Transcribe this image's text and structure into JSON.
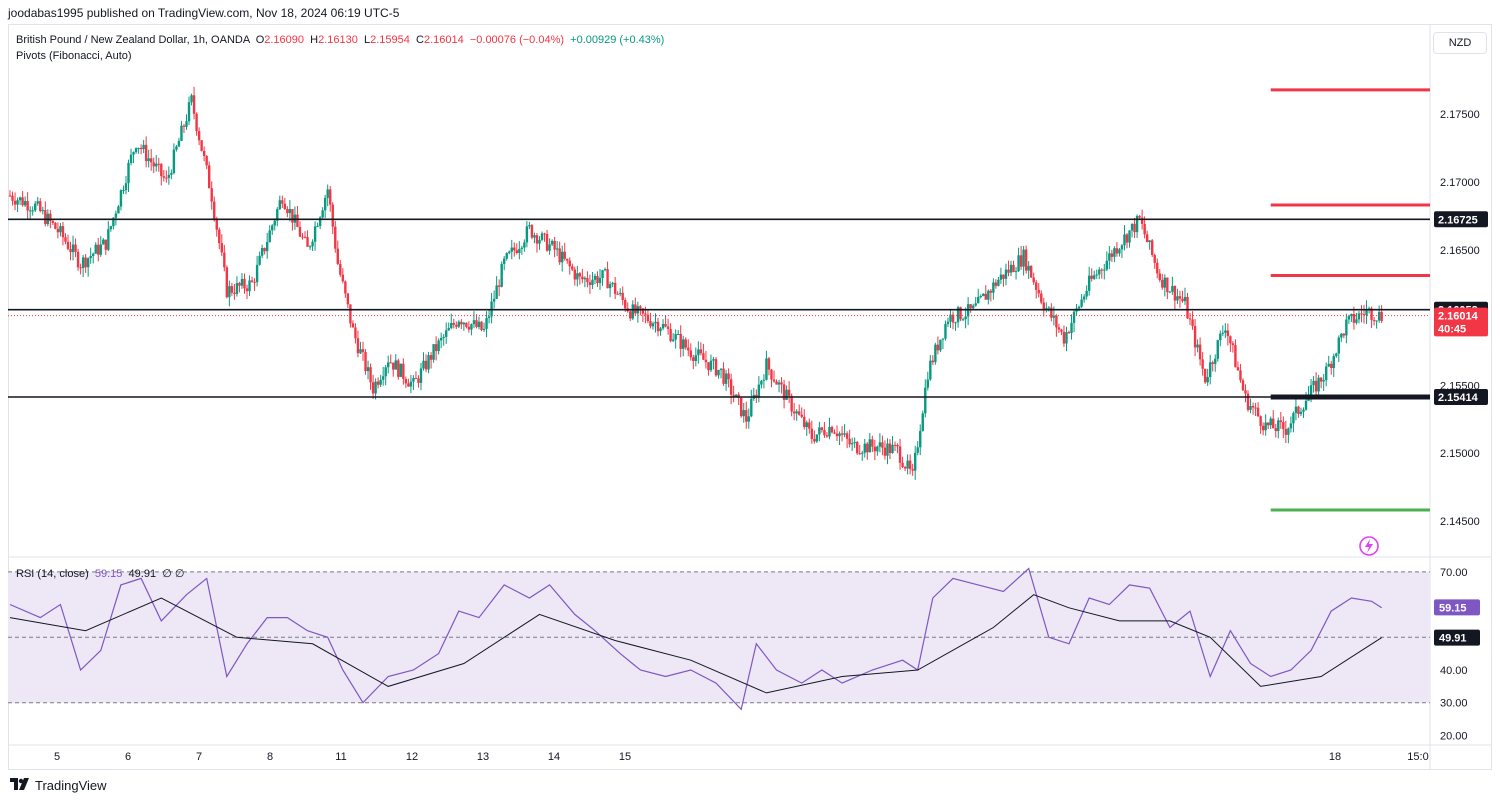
{
  "header": {
    "published_by": "joodabas1995 published on TradingView.com, Nov 18, 2024 06:19 UTC-5"
  },
  "legend": {
    "symbol": "British Pound / New Zealand Dollar, 1h, OANDA",
    "open_label": "O",
    "open": "2.16090",
    "high_label": "H",
    "high": "2.16130",
    "low_label": "L",
    "low": "2.15954",
    "close_label": "C",
    "close": "2.16014",
    "change": "−0.00076 (−0.04%)",
    "change2": "+0.00929 (+0.43%)",
    "indicator": "Pivots (Fibonacci, Auto)"
  },
  "currency_button": "NZD",
  "rsi_legend": {
    "label": "RSI (14, close)",
    "value": "59.15",
    "ma_value": "49.91",
    "extra": "∅ ∅"
  },
  "footer": {
    "brand": "TradingView"
  },
  "colors": {
    "up": "#089981",
    "down": "#f23645",
    "rsi_line": "#7e57c2",
    "rsi_band": "#ede7f6",
    "pivot_red": "#f23645",
    "pivot_green": "#4caf50",
    "pivot_black": "#131722"
  },
  "icons": {
    "alert": "lightning-alert-icon",
    "logo": "tradingview-logo-icon"
  },
  "chart_data": [
    {
      "type": "candlestick",
      "title": "British Pound / New Zealand Dollar, 1h, OANDA",
      "ylim": [
        2.143,
        2.179
      ],
      "y_ticks": [
        "2.17500",
        "2.17000",
        "2.16500",
        "2.15500",
        "2.15000",
        "2.14500"
      ],
      "x_ticks": [
        "5",
        "6",
        "7",
        "8",
        "11",
        "12",
        "13",
        "14",
        "15",
        "18",
        "15:0"
      ],
      "price_labels": [
        {
          "text": "2.16725",
          "value": 2.16725,
          "style": "black"
        },
        {
          "text": "2.16058",
          "value": 2.16058,
          "style": "black"
        },
        {
          "text": "2.16014",
          "value": 2.16014,
          "style": "red"
        },
        {
          "text": "40:45",
          "value": 2.1592,
          "style": "red"
        },
        {
          "text": "2.15414",
          "value": 2.15414,
          "style": "black"
        }
      ],
      "horizontal_lines": [
        {
          "value": 2.16725,
          "color": "black",
          "span": "full"
        },
        {
          "value": 2.16058,
          "color": "black",
          "span": "full"
        },
        {
          "value": 2.15414,
          "color": "black",
          "span": "full"
        },
        {
          "value": 2.16014,
          "color": "red",
          "span": "full",
          "style": "dotted"
        }
      ],
      "pivot_levels": [
        {
          "value": 2.1768,
          "color": "red"
        },
        {
          "value": 2.1683,
          "color": "red"
        },
        {
          "value": 2.1631,
          "color": "red"
        },
        {
          "value": 2.15414,
          "color": "black"
        },
        {
          "value": 2.1458,
          "color": "green"
        }
      ],
      "close_path": [
        [
          0,
          2.169
        ],
        [
          10,
          2.1682
        ],
        [
          20,
          2.1662
        ],
        [
          28,
          2.164
        ],
        [
          38,
          2.1655
        ],
        [
          50,
          2.173
        ],
        [
          62,
          2.17
        ],
        [
          72,
          2.176
        ],
        [
          80,
          2.169
        ],
        [
          86,
          2.162
        ],
        [
          96,
          2.1625
        ],
        [
          108,
          2.169
        ],
        [
          118,
          2.165
        ],
        [
          126,
          2.1695
        ],
        [
          130,
          2.164
        ],
        [
          136,
          2.159
        ],
        [
          144,
          2.1548
        ],
        [
          150,
          2.157
        ],
        [
          160,
          2.155
        ],
        [
          168,
          2.1575
        ],
        [
          178,
          2.16
        ],
        [
          188,
          2.159
        ],
        [
          196,
          2.164
        ],
        [
          206,
          2.1665
        ],
        [
          216,
          2.165
        ],
        [
          226,
          2.1628
        ],
        [
          236,
          2.163
        ],
        [
          246,
          2.1605
        ],
        [
          258,
          2.1595
        ],
        [
          270,
          2.1575
        ],
        [
          282,
          2.156
        ],
        [
          292,
          2.1525
        ],
        [
          300,
          2.1565
        ],
        [
          310,
          2.1535
        ],
        [
          318,
          2.1512
        ],
        [
          326,
          2.152
        ],
        [
          334,
          2.1505
        ],
        [
          344,
          2.1505
        ],
        [
          352,
          2.1502
        ],
        [
          358,
          2.1482
        ],
        [
          364,
          2.156
        ],
        [
          372,
          2.16
        ],
        [
          382,
          2.1605
        ],
        [
          392,
          2.1628
        ],
        [
          402,
          2.1645
        ],
        [
          410,
          2.161
        ],
        [
          418,
          2.1585
        ],
        [
          428,
          2.1625
        ],
        [
          438,
          2.165
        ],
        [
          448,
          2.1672
        ],
        [
          456,
          2.163
        ],
        [
          466,
          2.161
        ],
        [
          474,
          2.1555
        ],
        [
          482,
          2.1595
        ],
        [
          490,
          2.154
        ],
        [
          498,
          2.152
        ],
        [
          506,
          2.1518
        ],
        [
          514,
          2.154
        ],
        [
          522,
          2.156
        ],
        [
          530,
          2.1595
        ],
        [
          538,
          2.1605
        ],
        [
          544,
          2.1601
        ]
      ],
      "total_bars": 560
    },
    {
      "type": "line",
      "title": "RSI (14, close)",
      "ylim": [
        18,
        73
      ],
      "y_ticks": [
        "70.00",
        "40.00",
        "30.00",
        "20.00"
      ],
      "bands": {
        "upper": 70,
        "middle": 50,
        "lower": 30
      },
      "value_labels": [
        {
          "text": "59.15",
          "value": 59.15,
          "style": "purple"
        },
        {
          "text": "49.91",
          "value": 49.91,
          "style": "black"
        }
      ],
      "series": [
        {
          "name": "RSI",
          "values": [
            [
              0,
              60
            ],
            [
              12,
              56
            ],
            [
              20,
              60
            ],
            [
              28,
              40
            ],
            [
              36,
              46
            ],
            [
              44,
              66
            ],
            [
              52,
              68
            ],
            [
              60,
              55
            ],
            [
              70,
              63
            ],
            [
              78,
              68
            ],
            [
              86,
              38
            ],
            [
              94,
              48
            ],
            [
              102,
              56
            ],
            [
              110,
              56
            ],
            [
              118,
              52
            ],
            [
              126,
              50
            ],
            [
              132,
              40
            ],
            [
              140,
              30
            ],
            [
              150,
              38
            ],
            [
              160,
              40
            ],
            [
              170,
              45
            ],
            [
              178,
              58
            ],
            [
              186,
              56
            ],
            [
              196,
              66
            ],
            [
              206,
              62
            ],
            [
              214,
              66
            ],
            [
              224,
              57
            ],
            [
              232,
              52
            ],
            [
              242,
              45
            ],
            [
              250,
              40
            ],
            [
              260,
              38
            ],
            [
              270,
              40
            ],
            [
              280,
              36
            ],
            [
              290,
              28
            ],
            [
              296,
              48
            ],
            [
              304,
              40
            ],
            [
              314,
              36
            ],
            [
              322,
              40
            ],
            [
              330,
              36
            ],
            [
              342,
              40
            ],
            [
              354,
              43
            ],
            [
              360,
              40
            ],
            [
              366,
              62
            ],
            [
              374,
              68
            ],
            [
              384,
              66
            ],
            [
              394,
              64
            ],
            [
              404,
              71
            ],
            [
              412,
              50
            ],
            [
              420,
              48
            ],
            [
              428,
              62
            ],
            [
              436,
              60
            ],
            [
              444,
              66
            ],
            [
              452,
              65
            ],
            [
              460,
              53
            ],
            [
              468,
              58
            ],
            [
              476,
              38
            ],
            [
              484,
              52
            ],
            [
              492,
              42
            ],
            [
              500,
              38
            ],
            [
              508,
              40
            ],
            [
              516,
              46
            ],
            [
              524,
              58
            ],
            [
              532,
              62
            ],
            [
              540,
              61
            ],
            [
              544,
              59
            ]
          ]
        },
        {
          "name": "RSI-based MA",
          "values": [
            [
              0,
              56
            ],
            [
              30,
              52
            ],
            [
              60,
              62
            ],
            [
              90,
              50
            ],
            [
              120,
              48
            ],
            [
              150,
              35
            ],
            [
              180,
              42
            ],
            [
              210,
              57
            ],
            [
              240,
              49
            ],
            [
              270,
              43
            ],
            [
              300,
              33
            ],
            [
              330,
              38
            ],
            [
              360,
              40
            ],
            [
              390,
              53
            ],
            [
              406,
              63
            ],
            [
              420,
              59
            ],
            [
              440,
              55
            ],
            [
              460,
              55
            ],
            [
              476,
              50
            ],
            [
              496,
              35
            ],
            [
              520,
              38
            ],
            [
              544,
              49.9
            ]
          ]
        }
      ]
    }
  ]
}
